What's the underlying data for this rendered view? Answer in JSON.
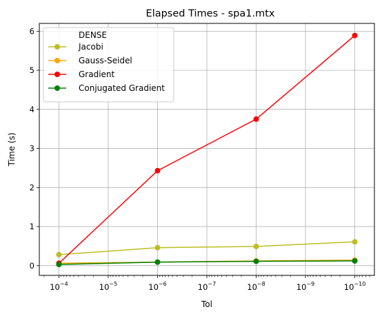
{
  "chart_data": {
    "type": "line",
    "title": "Elapsed Times - spa1.mtx",
    "xlabel": "Tol",
    "ylabel": "Time (s)",
    "x_scale": "log",
    "x_reversed": true,
    "x": [
      0.0001,
      1e-06,
      1e-08,
      1e-10
    ],
    "xlim": [
      0.00025,
      4e-11
    ],
    "ylim": [
      -0.25,
      6.2
    ],
    "grid": true,
    "legend_position": "top-left",
    "legend_title": "DENSE",
    "x_ticks": [
      {
        "value": 0.0001,
        "base": "10",
        "exp": "−4"
      },
      {
        "value": 1e-05,
        "base": "10",
        "exp": "−5"
      },
      {
        "value": 1e-06,
        "base": "10",
        "exp": "−6"
      },
      {
        "value": 1e-07,
        "base": "10",
        "exp": "−7"
      },
      {
        "value": 1e-08,
        "base": "10",
        "exp": "−8"
      },
      {
        "value": 1e-09,
        "base": "10",
        "exp": "−9"
      },
      {
        "value": 1e-10,
        "base": "10",
        "exp": "−10"
      }
    ],
    "y_ticks": [
      {
        "value": 0,
        "label": "0"
      },
      {
        "value": 1,
        "label": "1"
      },
      {
        "value": 2,
        "label": "2"
      },
      {
        "value": 3,
        "label": "3"
      },
      {
        "value": 4,
        "label": "4"
      },
      {
        "value": 5,
        "label": "5"
      },
      {
        "value": 6,
        "label": "6"
      }
    ],
    "series": [
      {
        "name": "Jacobi",
        "color": "#bcbd22",
        "values": [
          0.28,
          0.46,
          0.49,
          0.61
        ]
      },
      {
        "name": "Gauss-Seidel",
        "color": "#ffa500",
        "values": [
          0.06,
          0.09,
          0.12,
          0.14
        ]
      },
      {
        "name": "Gradient",
        "color": "#ff0000",
        "values": [
          0.06,
          2.43,
          3.75,
          5.89
        ]
      },
      {
        "name": "Conjugated Gradient",
        "color": "#008000",
        "values": [
          0.03,
          0.09,
          0.11,
          0.12
        ]
      }
    ]
  }
}
